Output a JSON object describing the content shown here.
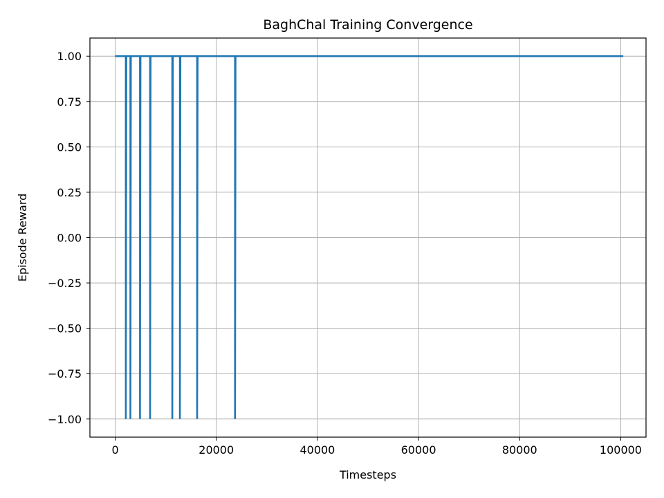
{
  "chart_data": {
    "type": "line",
    "title": "BaghChal Training Convergence",
    "xlabel": "Timesteps",
    "ylabel": "Episode Reward",
    "xlim": [
      -5000,
      105000
    ],
    "ylim": [
      -1.1,
      1.1
    ],
    "xticks": [
      0,
      20000,
      40000,
      60000,
      80000,
      100000
    ],
    "xtick_labels": [
      "0",
      "20000",
      "40000",
      "60000",
      "80000",
      "100000"
    ],
    "yticks": [
      1.0,
      0.75,
      0.5,
      0.25,
      0.0,
      -0.25,
      -0.5,
      -0.75,
      -1.0
    ],
    "ytick_labels": [
      "1.00",
      "0.75",
      "0.50",
      "0.25",
      "0.00",
      "−0.25",
      "−0.50",
      "−0.75",
      "−1.00"
    ],
    "grid": true,
    "series": [
      {
        "color": "#1f77b4",
        "x": [
          0,
          2100,
          2100,
          2200,
          3000,
          3000,
          3100,
          4900,
          4900,
          5000,
          6900,
          6900,
          7000,
          11300,
          11300,
          11400,
          12800,
          12800,
          12900,
          16200,
          16200,
          16300,
          23700,
          23700,
          23800,
          100500
        ],
        "y": [
          1,
          1,
          -1,
          1,
          1,
          -1,
          1,
          1,
          -1,
          1,
          1,
          -1,
          1,
          1,
          -1,
          1,
          1,
          -1,
          1,
          1,
          -1,
          1,
          1,
          -1,
          1,
          1
        ]
      }
    ]
  }
}
